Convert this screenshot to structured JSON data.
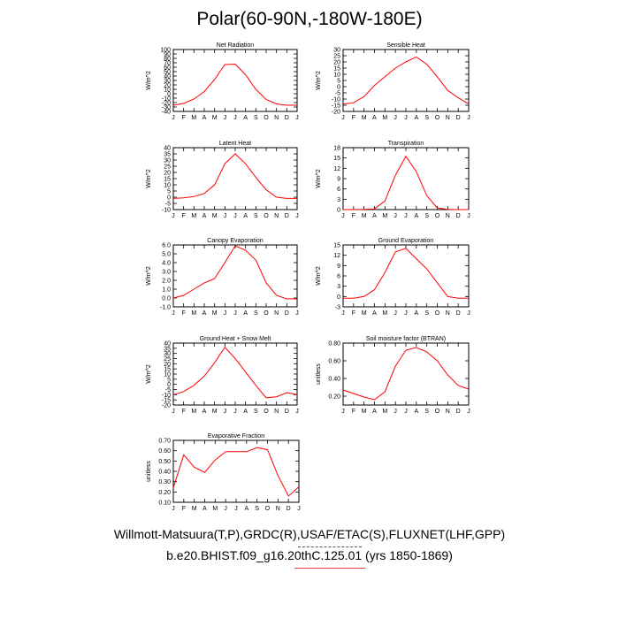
{
  "page": {
    "title": "Polar(60-90N,-180W-180E)",
    "footer_line1": "Willmott-Matsuura(T,P),GRDC(R),USAF/ETAC(S),FLUXNET(LHF,GPP)",
    "footer_line2": "b.e20.BHIST.f09_g16.20thC.125.01 (yrs 1850-1869)",
    "line_color": "#ff0000"
  },
  "chart_data": [
    {
      "type": "line",
      "title": "Net Radiation",
      "ylabel": "W/m^2",
      "ylim": [
        -40,
        100
      ],
      "yticks": [
        -40,
        -30,
        -20,
        -10,
        0,
        10,
        20,
        30,
        40,
        50,
        60,
        70,
        80,
        90,
        100
      ],
      "categories": [
        "J",
        "F",
        "M",
        "A",
        "M",
        "J",
        "J",
        "A",
        "S",
        "O",
        "N",
        "D",
        "J"
      ],
      "series": [
        {
          "values": [
            -26,
            -22,
            -12,
            5,
            32,
            66,
            67,
            43,
            10,
            -13,
            -23,
            -26,
            -26
          ]
        }
      ]
    },
    {
      "type": "line",
      "title": "Sensible Heat",
      "ylabel": "W/m^2",
      "ylim": [
        -20,
        30
      ],
      "yticks": [
        -20,
        -15,
        -10,
        -5,
        0,
        5,
        10,
        15,
        20,
        25,
        30
      ],
      "categories": [
        "J",
        "F",
        "M",
        "A",
        "M",
        "J",
        "J",
        "A",
        "S",
        "O",
        "N",
        "D",
        "J"
      ],
      "series": [
        {
          "values": [
            -14,
            -13,
            -8,
            1,
            8,
            15,
            20,
            24,
            18,
            8,
            -3,
            -9,
            -14
          ]
        }
      ]
    },
    {
      "type": "line",
      "title": "Latent Heat",
      "ylabel": "W/m^2",
      "ylim": [
        -10,
        40
      ],
      "yticks": [
        -10,
        -5,
        0,
        5,
        10,
        15,
        20,
        25,
        30,
        35,
        40
      ],
      "categories": [
        "J",
        "F",
        "M",
        "A",
        "M",
        "J",
        "J",
        "A",
        "S",
        "O",
        "N",
        "D",
        "J"
      ],
      "series": [
        {
          "values": [
            -1,
            -0.5,
            0.5,
            3,
            10,
            27,
            35,
            27,
            16,
            6,
            0,
            -1,
            -1
          ]
        }
      ]
    },
    {
      "type": "line",
      "title": "Transpiration",
      "ylabel": "W/m^2",
      "ylim": [
        0,
        18
      ],
      "yticks": [
        0,
        3,
        6,
        9,
        12,
        15,
        18
      ],
      "categories": [
        "J",
        "F",
        "M",
        "A",
        "M",
        "J",
        "J",
        "A",
        "S",
        "O",
        "N",
        "D",
        "J"
      ],
      "series": [
        {
          "values": [
            0,
            0,
            0.05,
            0.2,
            2.5,
            10,
            15.5,
            11,
            4,
            0.5,
            0.05,
            0,
            0
          ]
        }
      ]
    },
    {
      "type": "line",
      "title": "Canopy Evaporation",
      "ylabel": "W/m^2",
      "ylim": [
        -1.0,
        6.0
      ],
      "yticks": [
        -1.0,
        0.0,
        1.0,
        2.0,
        3.0,
        4.0,
        5.0,
        6.0
      ],
      "categories": [
        "J",
        "F",
        "M",
        "A",
        "M",
        "J",
        "J",
        "A",
        "S",
        "O",
        "N",
        "D",
        "J"
      ],
      "series": [
        {
          "values": [
            0.0,
            0.3,
            1.0,
            1.7,
            2.2,
            4.0,
            5.9,
            5.4,
            4.3,
            1.7,
            0.3,
            -0.1,
            -0.1
          ]
        }
      ]
    },
    {
      "type": "line",
      "title": "Ground Evaporation",
      "ylabel": "W/m^2",
      "ylim": [
        -3,
        15
      ],
      "yticks": [
        -3,
        0,
        3,
        6,
        9,
        12,
        15
      ],
      "categories": [
        "J",
        "F",
        "M",
        "A",
        "M",
        "J",
        "J",
        "A",
        "S",
        "O",
        "N",
        "D",
        "J"
      ],
      "series": [
        {
          "values": [
            -0.5,
            -0.5,
            0,
            2,
            7,
            13,
            14,
            11,
            8,
            4,
            0,
            -0.5,
            -0.5
          ]
        }
      ]
    },
    {
      "type": "line",
      "title": "Ground Heat + Snow Melt",
      "ylabel": "W/m^2",
      "ylim": [
        -20,
        40
      ],
      "yticks": [
        -20,
        -15,
        -10,
        -5,
        0,
        5,
        10,
        15,
        20,
        25,
        30,
        35,
        40
      ],
      "categories": [
        "J",
        "F",
        "M",
        "A",
        "M",
        "J",
        "J",
        "A",
        "S",
        "O",
        "N",
        "D",
        "J"
      ],
      "series": [
        {
          "values": [
            -10,
            -7,
            -1,
            8,
            21,
            36,
            25,
            12,
            -1,
            -13,
            -12,
            -8,
            -10
          ]
        }
      ]
    },
    {
      "type": "line",
      "title": "Soil moisture factor (BTRAN)",
      "ylabel": "unitless",
      "ylim": [
        0.1,
        0.8
      ],
      "yticks": [
        0.2,
        0.4,
        0.6,
        0.8
      ],
      "categories": [
        "J",
        "F",
        "M",
        "A",
        "M",
        "J",
        "J",
        "A",
        "S",
        "O",
        "N",
        "D",
        "J"
      ],
      "series": [
        {
          "values": [
            0.27,
            0.23,
            0.19,
            0.16,
            0.25,
            0.54,
            0.72,
            0.75,
            0.7,
            0.6,
            0.44,
            0.32,
            0.28
          ]
        }
      ]
    },
    {
      "type": "line",
      "title": "Evaporative Fraction",
      "ylabel": "unitless",
      "ylim": [
        0.1,
        0.7
      ],
      "yticks": [
        0.1,
        0.2,
        0.3,
        0.4,
        0.5,
        0.6,
        0.7
      ],
      "categories": [
        "J",
        "F",
        "M",
        "A",
        "M",
        "J",
        "J",
        "A",
        "S",
        "O",
        "N",
        "D",
        "J"
      ],
      "series": [
        {
          "values": [
            0.24,
            0.56,
            0.44,
            0.39,
            0.51,
            0.59,
            0.59,
            0.59,
            0.63,
            0.61,
            0.36,
            0.16,
            0.25
          ]
        }
      ]
    }
  ]
}
